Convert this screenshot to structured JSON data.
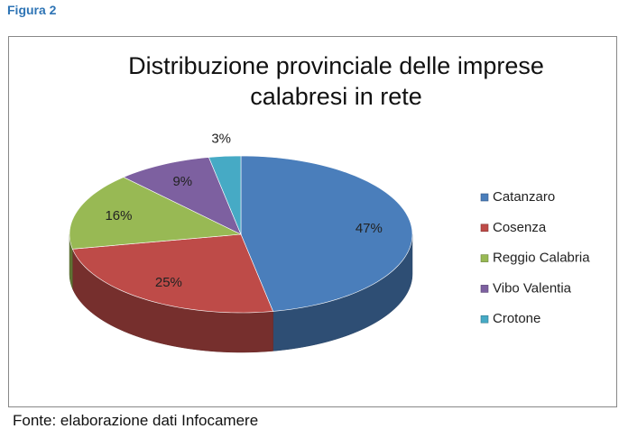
{
  "figure_label": "Figura 2",
  "chart_data": {
    "type": "pie",
    "title": "Distribuzione provinciale delle imprese calabresi in rete",
    "categories": [
      "Catanzaro",
      "Cosenza",
      "Reggio Calabria",
      "Vibo Valentia",
      "Crotone"
    ],
    "values": [
      47,
      25,
      16,
      9,
      3
    ],
    "value_labels": [
      "47%",
      "25%",
      "16%",
      "9%",
      "3%"
    ],
    "colors": [
      "#4a7ebb",
      "#be4b48",
      "#98b954",
      "#7d60a0",
      "#46aac5"
    ],
    "legend": "right"
  },
  "source": "Fonte: elaborazione dati Infocamere"
}
